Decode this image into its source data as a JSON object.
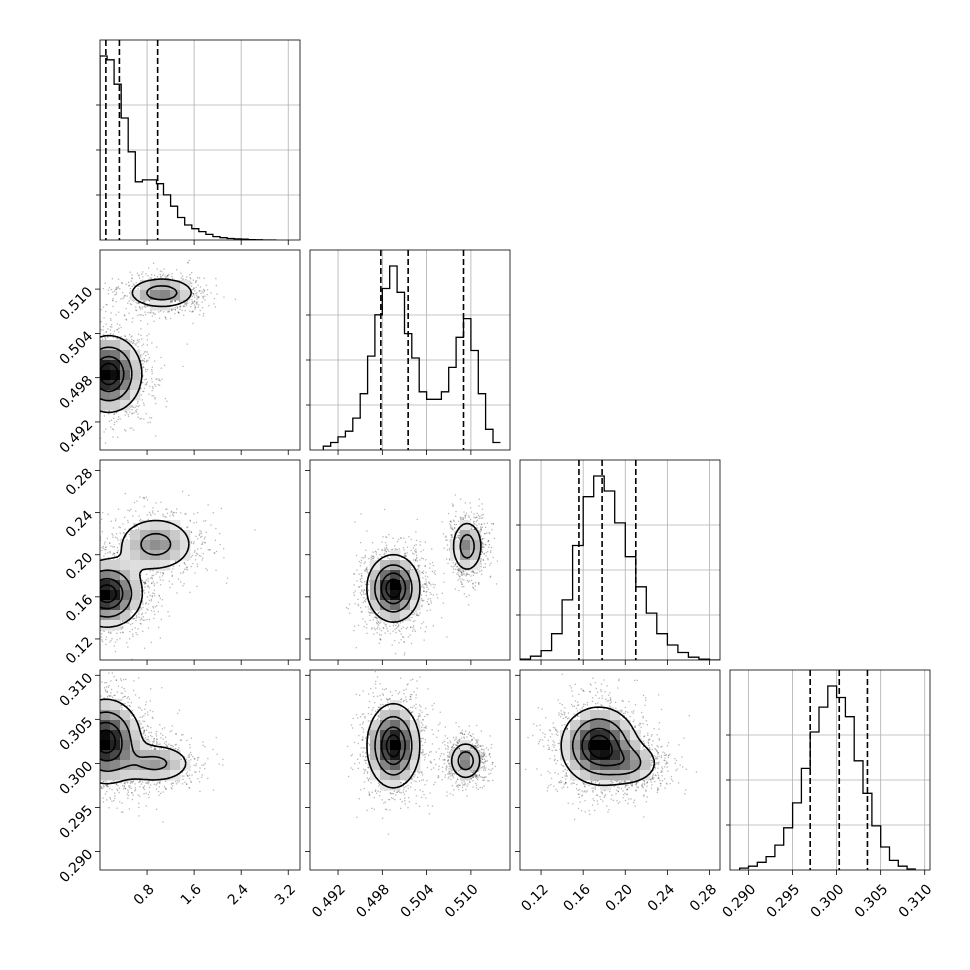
{
  "chart_data": {
    "type": "corner",
    "grid": true,
    "quantile_lines": "dashed",
    "parameters": [
      {
        "range": [
          0.0,
          3.4
        ],
        "ticks": [
          0.8,
          1.6,
          2.4,
          3.2
        ],
        "tick_labels": [
          "0.8",
          "1.6",
          "2.4",
          "3.2"
        ],
        "quantiles": [
          0.1,
          0.33,
          0.98
        ],
        "hist": {
          "edges": [
            0.0,
            0.12,
            0.24,
            0.36,
            0.48,
            0.6,
            0.72,
            0.84,
            0.96,
            1.08,
            1.2,
            1.32,
            1.44,
            1.56,
            1.68,
            1.8,
            1.92,
            2.04,
            2.16,
            2.28,
            2.4,
            2.52,
            2.64,
            2.76,
            2.88,
            3.0
          ],
          "counts": [
            0.98,
            0.96,
            0.83,
            0.65,
            0.47,
            0.31,
            0.32,
            0.32,
            0.3,
            0.24,
            0.18,
            0.12,
            0.08,
            0.06,
            0.045,
            0.03,
            0.018,
            0.012,
            0.008,
            0.006,
            0.004,
            0.002,
            0.001,
            0.0,
            0.0
          ]
        }
      },
      {
        "range": [
          0.4882,
          0.5153
        ],
        "ticks": [
          0.492,
          0.498,
          0.504,
          0.51
        ],
        "tick_labels": [
          "0.492",
          "0.498",
          "0.504",
          "0.510"
        ],
        "quantiles": [
          0.4978,
          0.5015,
          0.509
        ],
        "hist": {
          "edges": [
            0.49,
            0.491,
            0.492,
            0.493,
            0.494,
            0.495,
            0.496,
            0.497,
            0.498,
            0.499,
            0.5,
            0.501,
            0.502,
            0.503,
            0.504,
            0.505,
            0.506,
            0.507,
            0.508,
            0.509,
            0.51,
            0.511,
            0.512,
            0.513,
            0.514
          ],
          "counts": [
            0.02,
            0.04,
            0.07,
            0.1,
            0.17,
            0.3,
            0.5,
            0.72,
            0.86,
            0.98,
            0.84,
            0.62,
            0.49,
            0.31,
            0.27,
            0.27,
            0.31,
            0.44,
            0.6,
            0.7,
            0.53,
            0.3,
            0.11,
            0.04
          ]
        }
      },
      {
        "range": [
          0.1,
          0.29
        ],
        "ticks": [
          0.12,
          0.16,
          0.2,
          0.24,
          0.28
        ],
        "tick_labels": [
          "0.12",
          "0.16",
          "0.20",
          "0.24",
          "0.28"
        ],
        "quantiles": [
          0.156,
          0.178,
          0.21
        ],
        "hist": {
          "edges": [
            0.1,
            0.11,
            0.12,
            0.13,
            0.14,
            0.15,
            0.16,
            0.17,
            0.18,
            0.19,
            0.2,
            0.21,
            0.22,
            0.23,
            0.24,
            0.25,
            0.26,
            0.27,
            0.28,
            0.29
          ],
          "counts": [
            0.005,
            0.02,
            0.05,
            0.14,
            0.32,
            0.61,
            0.87,
            0.98,
            0.9,
            0.73,
            0.55,
            0.39,
            0.25,
            0.14,
            0.08,
            0.04,
            0.015,
            0.005,
            0.0
          ]
        }
      },
      {
        "range": [
          0.2879,
          0.3106
        ],
        "ticks": [
          0.29,
          0.295,
          0.3,
          0.305,
          0.31
        ],
        "tick_labels": [
          "0.290",
          "0.295",
          "0.300",
          "0.305",
          "0.310"
        ],
        "quantiles": [
          0.297,
          0.3003,
          0.3035
        ],
        "hist": {
          "edges": [
            0.289,
            0.29,
            0.291,
            0.292,
            0.293,
            0.294,
            0.295,
            0.296,
            0.297,
            0.298,
            0.299,
            0.3,
            0.301,
            0.302,
            0.303,
            0.304,
            0.305,
            0.306,
            0.307,
            0.308,
            0.309
          ],
          "counts": [
            0.01,
            0.02,
            0.04,
            0.07,
            0.13,
            0.22,
            0.35,
            0.53,
            0.72,
            0.85,
            0.96,
            0.9,
            0.8,
            0.57,
            0.4,
            0.23,
            0.12,
            0.05,
            0.02,
            0.005
          ]
        }
      }
    ],
    "joint": [
      {
        "row": 1,
        "col": 0,
        "blobs": [
          {
            "center": [
              0.15,
              0.4985
            ],
            "spread": [
              0.28,
              0.0026
            ],
            "weight": 1.0
          },
          {
            "center": [
              1.05,
              0.5095
            ],
            "spread": [
              0.3,
              0.0011
            ],
            "weight": 0.55
          }
        ]
      },
      {
        "row": 2,
        "col": 0,
        "blobs": [
          {
            "center": [
              0.12,
              0.163
            ],
            "spread": [
              0.3,
              0.016
            ],
            "weight": 1.0
          },
          {
            "center": [
              0.95,
              0.21
            ],
            "spread": [
              0.35,
              0.014
            ],
            "weight": 0.5
          }
        ]
      },
      {
        "row": 2,
        "col": 1,
        "blobs": [
          {
            "center": [
              0.4995,
              0.168
            ],
            "spread": [
              0.0018,
              0.016
            ],
            "weight": 1.0
          },
          {
            "center": [
              0.5095,
              0.208
            ],
            "spread": [
              0.0011,
              0.013
            ],
            "weight": 0.55
          }
        ]
      },
      {
        "row": 3,
        "col": 0,
        "blobs": [
          {
            "center": [
              0.1,
              0.3025
            ],
            "spread": [
              0.3,
              0.0024
            ],
            "weight": 1.0
          },
          {
            "center": [
              0.95,
              0.3
            ],
            "spread": [
              0.33,
              0.0012
            ],
            "weight": 0.45
          }
        ]
      },
      {
        "row": 3,
        "col": 1,
        "blobs": [
          {
            "center": [
              0.4995,
              0.302
            ],
            "spread": [
              0.0018,
              0.0024
            ],
            "weight": 1.0
          },
          {
            "center": [
              0.5093,
              0.3003
            ],
            "spread": [
              0.0011,
              0.0011
            ],
            "weight": 0.6
          }
        ]
      },
      {
        "row": 3,
        "col": 2,
        "blobs": [
          {
            "center": [
              0.175,
              0.302
            ],
            "spread": [
              0.018,
              0.0022
            ],
            "weight": 1.0
          },
          {
            "center": [
              0.205,
              0.3
            ],
            "spread": [
              0.015,
              0.0013
            ],
            "weight": 0.4
          }
        ]
      }
    ]
  }
}
